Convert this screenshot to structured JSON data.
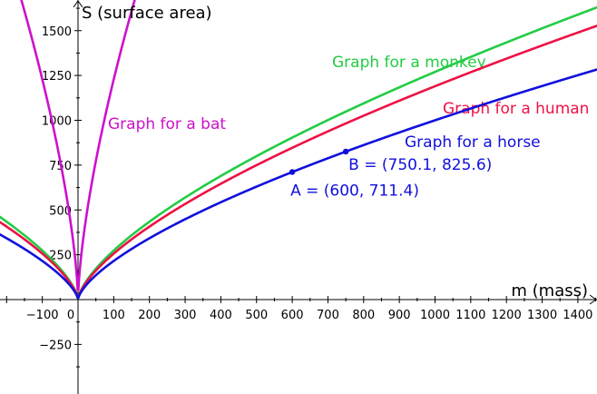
{
  "chart_data": {
    "type": "line",
    "xlabel": "m (mass)",
    "ylabel": "S (surface area)",
    "xlim": [
      -220,
      1450
    ],
    "ylim": [
      -440,
      1720
    ],
    "x_ticks": [
      -100,
      0,
      100,
      200,
      300,
      400,
      500,
      600,
      700,
      800,
      900,
      1000,
      1100,
      1200,
      1300,
      1400
    ],
    "y_ticks": [
      -250,
      250,
      500,
      750,
      1000,
      1250,
      1500
    ],
    "x_tick_labels": [
      "−100",
      "0",
      "100",
      "200",
      "300",
      "400",
      "500",
      "600",
      "700",
      "800",
      "900",
      "1000",
      "1100",
      "1200",
      "1300",
      "1400"
    ],
    "y_tick_labels": [
      "−250",
      "250",
      "500",
      "750",
      "1000",
      "1250",
      "1500"
    ],
    "function_form": "S = k * |m|^(2/3)",
    "series": [
      {
        "name": "Graph for a monkey",
        "k": 12.7,
        "color": "#22cc44"
      },
      {
        "name": "Graph for a human",
        "k": 11.9,
        "color": "#ee1144"
      },
      {
        "name": "Graph for a horse",
        "k": 10.0,
        "color": "#1010dd"
      },
      {
        "name": "Graph for a bat",
        "k": 57.0,
        "color": "#cc11cc"
      }
    ],
    "points": [
      {
        "name": "A",
        "x": 600,
        "y": 711.4,
        "label": "A = (600, 711.4)",
        "color": "#1010dd"
      },
      {
        "name": "B",
        "x": 750.1,
        "y": 825.6,
        "label": "B = (750.1, 825.6)",
        "color": "#1010dd"
      }
    ],
    "grid": false
  }
}
